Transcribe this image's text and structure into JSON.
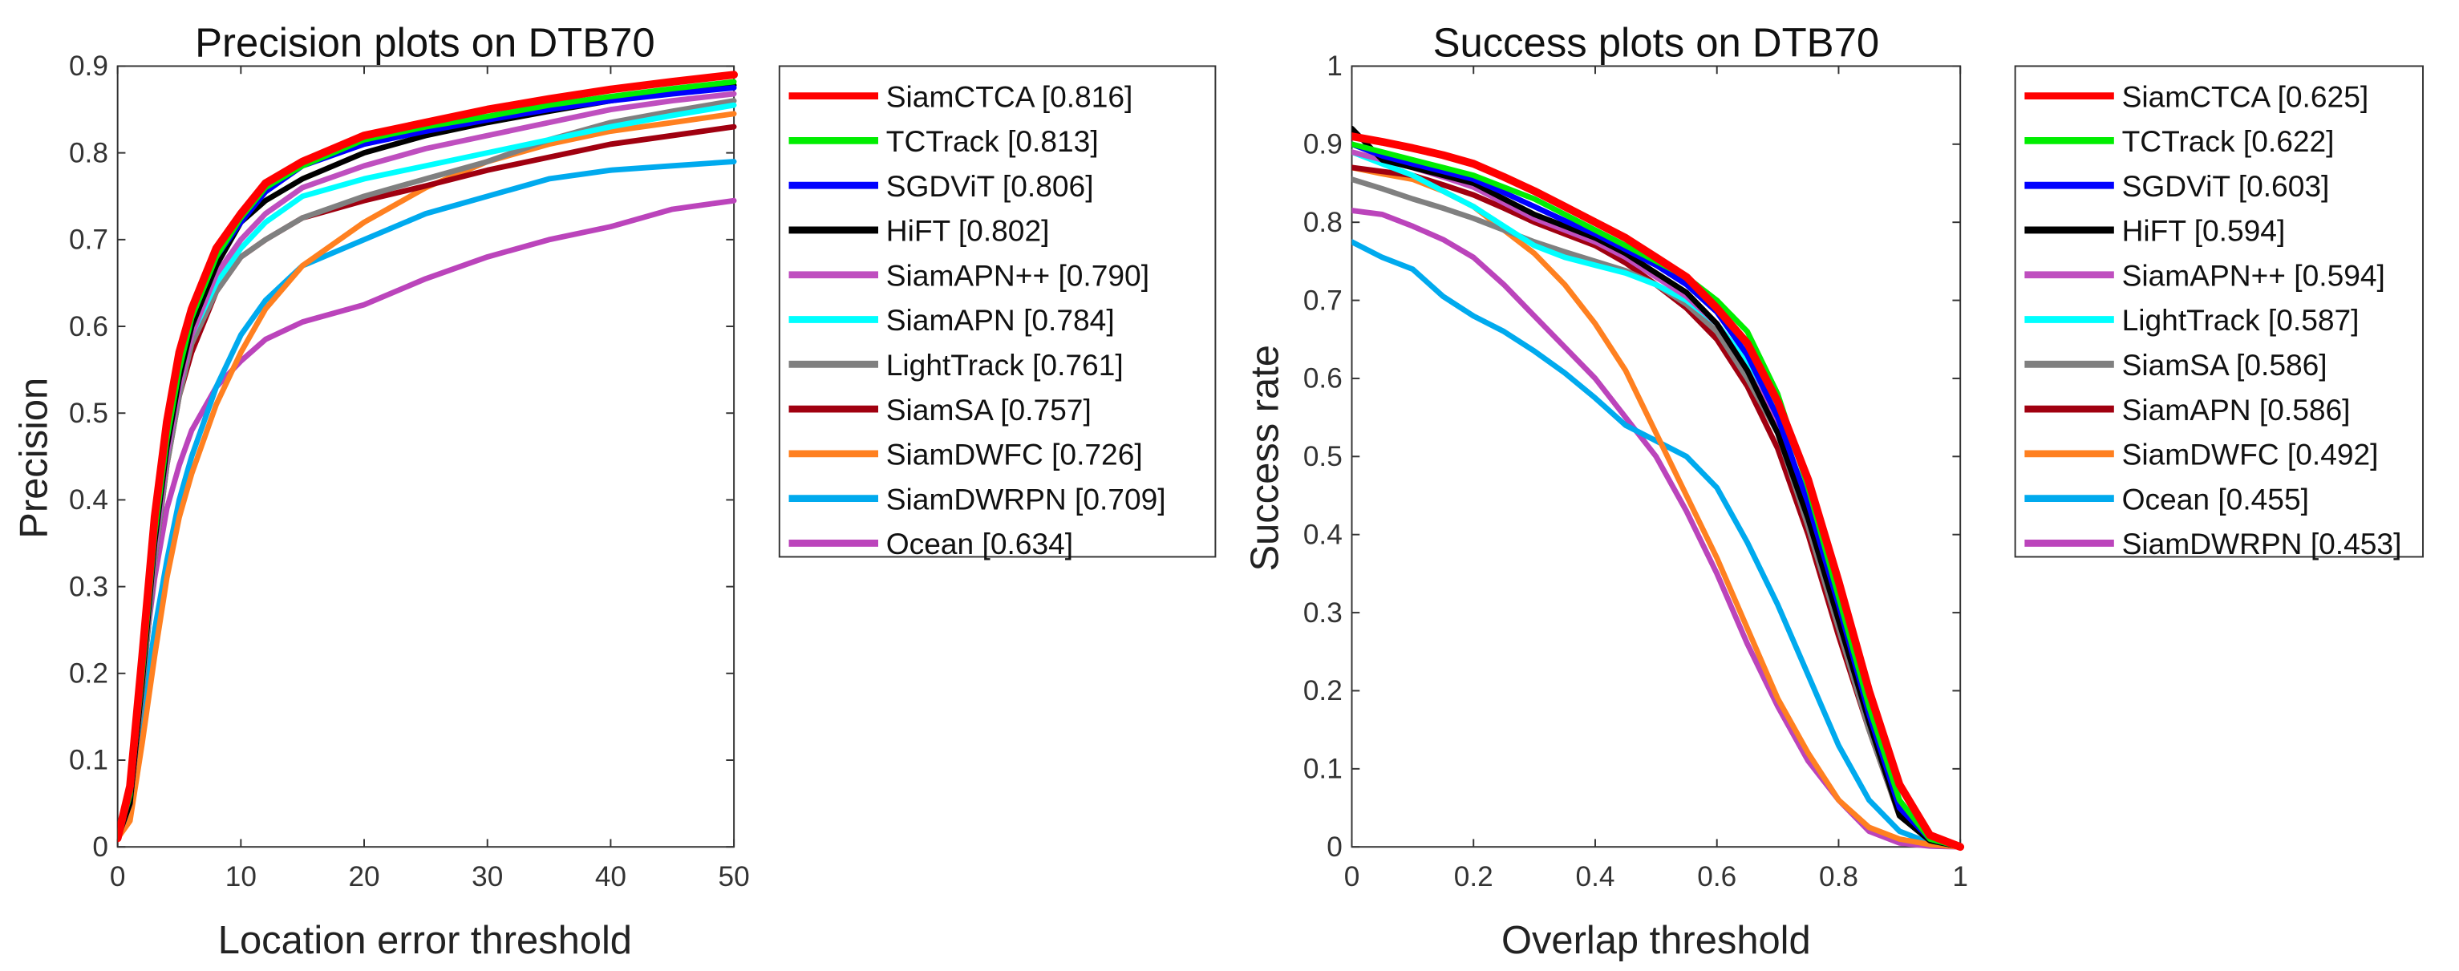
{
  "chart_data": [
    {
      "type": "line",
      "title": "Precision plots on DTB70",
      "xlabel": "Location error threshold",
      "ylabel": "Precision",
      "xlim": [
        0,
        50
      ],
      "ylim": [
        0,
        0.9
      ],
      "xticks": [
        0,
        10,
        20,
        30,
        40,
        50
      ],
      "yticks": [
        0,
        0.1,
        0.2,
        0.3,
        0.4,
        0.5,
        0.6,
        0.7,
        0.8,
        0.9
      ],
      "grid": false,
      "legend_position": "outside-right",
      "x": [
        0,
        1,
        2,
        3,
        4,
        5,
        6,
        8,
        10,
        12,
        15,
        20,
        25,
        30,
        35,
        40,
        45,
        50
      ],
      "series": [
        {
          "name": "SiamCTCA [0.816]",
          "color": "#ff0000",
          "values": [
            0.01,
            0.07,
            0.22,
            0.38,
            0.49,
            0.57,
            0.62,
            0.69,
            0.73,
            0.765,
            0.79,
            0.82,
            0.835,
            0.85,
            0.862,
            0.873,
            0.882,
            0.89
          ]
        },
        {
          "name": "TCTrack [0.813]",
          "color": "#00ee00",
          "values": [
            0.01,
            0.06,
            0.2,
            0.36,
            0.47,
            0.55,
            0.61,
            0.68,
            0.725,
            0.76,
            0.785,
            0.815,
            0.83,
            0.842,
            0.855,
            0.865,
            0.874,
            0.882
          ]
        },
        {
          "name": "SGDViT [0.806]",
          "color": "#0000ff",
          "values": [
            0.01,
            0.06,
            0.2,
            0.36,
            0.47,
            0.55,
            0.61,
            0.68,
            0.72,
            0.755,
            0.785,
            0.81,
            0.825,
            0.838,
            0.85,
            0.86,
            0.868,
            0.875
          ]
        },
        {
          "name": "HiFT [0.802]",
          "color": "#000000",
          "values": [
            0.01,
            0.05,
            0.19,
            0.35,
            0.46,
            0.54,
            0.6,
            0.67,
            0.72,
            0.745,
            0.77,
            0.8,
            0.82,
            0.835,
            0.848,
            0.86,
            0.87,
            0.878
          ]
        },
        {
          "name": "SiamAPN++ [0.790]",
          "color": "#bf4fbf",
          "values": [
            0.01,
            0.05,
            0.19,
            0.34,
            0.45,
            0.53,
            0.59,
            0.66,
            0.7,
            0.73,
            0.76,
            0.785,
            0.805,
            0.82,
            0.835,
            0.85,
            0.86,
            0.868
          ]
        },
        {
          "name": "SiamAPN [0.784]",
          "color": "#00ffff",
          "values": [
            0.01,
            0.05,
            0.19,
            0.34,
            0.45,
            0.53,
            0.59,
            0.65,
            0.69,
            0.72,
            0.75,
            0.77,
            0.785,
            0.8,
            0.815,
            0.83,
            0.843,
            0.855
          ]
        },
        {
          "name": "LightTrack [0.761]",
          "color": "#808080",
          "values": [
            0.01,
            0.05,
            0.18,
            0.33,
            0.44,
            0.52,
            0.58,
            0.64,
            0.68,
            0.7,
            0.725,
            0.75,
            0.77,
            0.79,
            0.815,
            0.835,
            0.848,
            0.86
          ]
        },
        {
          "name": "SiamSA [0.757]",
          "color": "#a00010",
          "values": [
            0.01,
            0.05,
            0.18,
            0.33,
            0.44,
            0.52,
            0.57,
            0.64,
            0.68,
            0.7,
            0.725,
            0.745,
            0.762,
            0.78,
            0.795,
            0.81,
            0.82,
            0.83
          ]
        },
        {
          "name": "SiamDWFC [0.726]",
          "color": "#ff8020",
          "values": [
            0.01,
            0.03,
            0.12,
            0.22,
            0.31,
            0.38,
            0.43,
            0.51,
            0.57,
            0.62,
            0.67,
            0.72,
            0.76,
            0.79,
            0.81,
            0.825,
            0.835,
            0.845
          ]
        },
        {
          "name": "SiamDWRPN [0.709]",
          "color": "#00aaee",
          "values": [
            0.01,
            0.04,
            0.15,
            0.25,
            0.33,
            0.4,
            0.45,
            0.53,
            0.59,
            0.63,
            0.67,
            0.7,
            0.73,
            0.75,
            0.77,
            0.78,
            0.785,
            0.79
          ]
        },
        {
          "name": "Ocean [0.634]",
          "color": "#bb44bb",
          "values": [
            0.01,
            0.05,
            0.2,
            0.31,
            0.39,
            0.44,
            0.48,
            0.53,
            0.56,
            0.585,
            0.605,
            0.625,
            0.655,
            0.68,
            0.7,
            0.715,
            0.735,
            0.745
          ]
        }
      ]
    },
    {
      "type": "line",
      "title": "Success plots on DTB70",
      "xlabel": "Overlap threshold",
      "ylabel": "Success rate",
      "xlim": [
        0,
        1
      ],
      "ylim": [
        0,
        1
      ],
      "xticks": [
        0,
        0.2,
        0.4,
        0.6,
        0.8,
        1
      ],
      "yticks": [
        0,
        0.1,
        0.2,
        0.3,
        0.4,
        0.5,
        0.6,
        0.7,
        0.8,
        0.9,
        1
      ],
      "grid": false,
      "legend_position": "outside-right",
      "x": [
        0,
        0.05,
        0.1,
        0.15,
        0.2,
        0.25,
        0.3,
        0.35,
        0.4,
        0.45,
        0.5,
        0.55,
        0.6,
        0.65,
        0.7,
        0.75,
        0.8,
        0.85,
        0.9,
        0.95,
        1
      ],
      "series": [
        {
          "name": "SiamCTCA [0.625]",
          "color": "#ff0000",
          "values": [
            0.91,
            0.903,
            0.895,
            0.886,
            0.875,
            0.858,
            0.84,
            0.82,
            0.8,
            0.78,
            0.755,
            0.73,
            0.69,
            0.645,
            0.57,
            0.47,
            0.34,
            0.2,
            0.08,
            0.015,
            0
          ]
        },
        {
          "name": "TCTrack [0.622]",
          "color": "#00ee00",
          "values": [
            0.9,
            0.89,
            0.88,
            0.87,
            0.86,
            0.845,
            0.83,
            0.81,
            0.79,
            0.77,
            0.75,
            0.73,
            0.7,
            0.66,
            0.58,
            0.46,
            0.32,
            0.18,
            0.06,
            0.01,
            0
          ]
        },
        {
          "name": "SGDViT [0.603]",
          "color": "#0000ff",
          "values": [
            0.9,
            0.885,
            0.875,
            0.865,
            0.855,
            0.838,
            0.82,
            0.802,
            0.785,
            0.765,
            0.745,
            0.72,
            0.685,
            0.63,
            0.55,
            0.44,
            0.31,
            0.17,
            0.05,
            0.01,
            0
          ]
        },
        {
          "name": "HiFT [0.594]",
          "color": "#000000",
          "values": [
            0.92,
            0.88,
            0.87,
            0.86,
            0.85,
            0.83,
            0.81,
            0.795,
            0.78,
            0.76,
            0.735,
            0.71,
            0.67,
            0.61,
            0.53,
            0.42,
            0.29,
            0.16,
            0.04,
            0.008,
            0
          ]
        },
        {
          "name": "SiamAPN++ [0.594]",
          "color": "#bf4fbf",
          "values": [
            0.89,
            0.88,
            0.87,
            0.858,
            0.845,
            0.825,
            0.805,
            0.79,
            0.775,
            0.755,
            0.73,
            0.705,
            0.67,
            0.61,
            0.54,
            0.42,
            0.29,
            0.16,
            0.05,
            0.01,
            0
          ]
        },
        {
          "name": "LightTrack [0.587]",
          "color": "#00ffff",
          "values": [
            0.89,
            0.875,
            0.86,
            0.84,
            0.82,
            0.795,
            0.77,
            0.755,
            0.745,
            0.735,
            0.72,
            0.7,
            0.67,
            0.62,
            0.56,
            0.43,
            0.3,
            0.17,
            0.05,
            0.01,
            0
          ]
        },
        {
          "name": "SiamSA [0.586]",
          "color": "#808080",
          "values": [
            0.855,
            0.843,
            0.83,
            0.818,
            0.805,
            0.79,
            0.775,
            0.762,
            0.75,
            0.738,
            0.72,
            0.695,
            0.66,
            0.6,
            0.53,
            0.41,
            0.28,
            0.15,
            0.04,
            0.008,
            0
          ]
        },
        {
          "name": "SiamAPN [0.586]",
          "color": "#a00010",
          "values": [
            0.87,
            0.865,
            0.86,
            0.848,
            0.835,
            0.818,
            0.8,
            0.785,
            0.77,
            0.748,
            0.72,
            0.69,
            0.65,
            0.59,
            0.51,
            0.4,
            0.27,
            0.15,
            0.04,
            0.008,
            0
          ]
        },
        {
          "name": "SiamDWFC [0.492]",
          "color": "#ff8020",
          "values": [
            0.87,
            0.862,
            0.855,
            0.84,
            0.82,
            0.79,
            0.76,
            0.72,
            0.67,
            0.61,
            0.53,
            0.45,
            0.37,
            0.28,
            0.19,
            0.12,
            0.06,
            0.025,
            0.01,
            0.003,
            0
          ]
        },
        {
          "name": "Ocean [0.455]",
          "color": "#00aaee",
          "values": [
            0.775,
            0.755,
            0.74,
            0.705,
            0.68,
            0.66,
            0.635,
            0.607,
            0.575,
            0.54,
            0.52,
            0.5,
            0.46,
            0.39,
            0.31,
            0.22,
            0.13,
            0.06,
            0.02,
            0.005,
            0
          ]
        },
        {
          "name": "SiamDWRPN [0.453]",
          "color": "#bb44bb",
          "values": [
            0.815,
            0.81,
            0.795,
            0.778,
            0.755,
            0.72,
            0.68,
            0.64,
            0.6,
            0.55,
            0.5,
            0.43,
            0.35,
            0.26,
            0.18,
            0.11,
            0.06,
            0.02,
            0.005,
            0.001,
            0
          ]
        }
      ]
    }
  ]
}
